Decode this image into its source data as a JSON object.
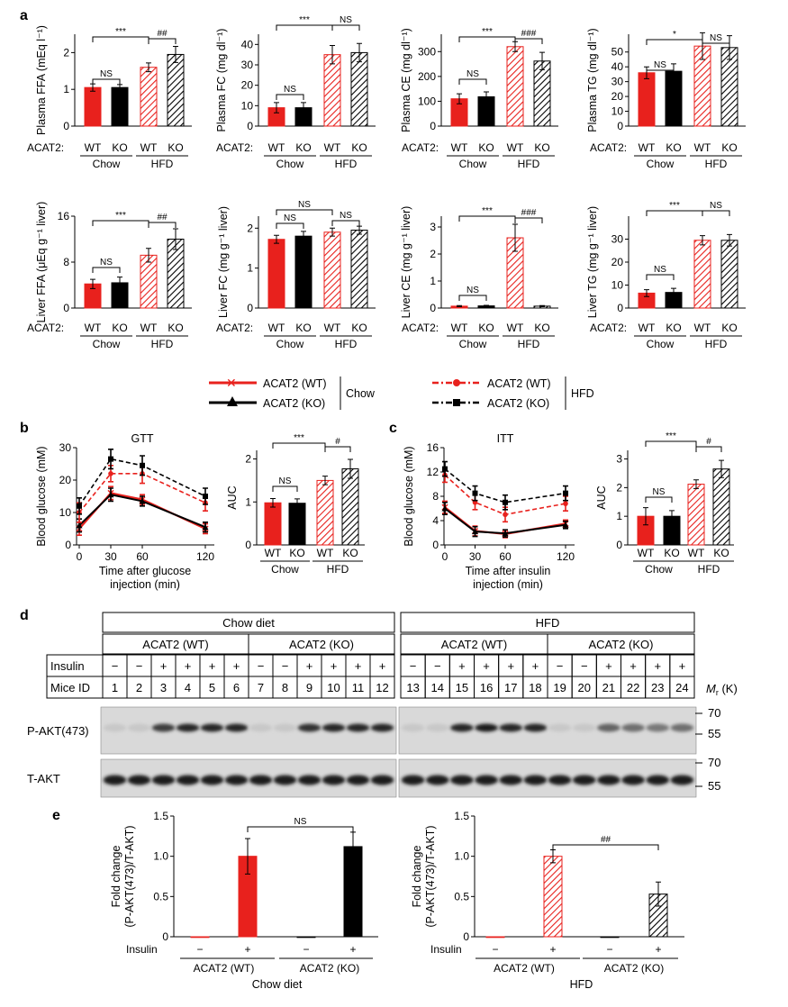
{
  "panel_labels": {
    "a": "a",
    "b": "b",
    "c": "c",
    "d": "d",
    "e": "e"
  },
  "colors": {
    "wt": "#e8211d",
    "ko": "#000000",
    "hfd_wt": "#e8211d",
    "hfd_ko": "#000000"
  },
  "group_labels": {
    "acat2": "ACAT2:",
    "wt": "WT",
    "ko": "KO",
    "chow": "Chow",
    "hfd": "HFD"
  },
  "legend": {
    "chow_wt": "ACAT2 (WT)",
    "chow_ko": "ACAT2 (KO)",
    "chow": "Chow",
    "hfd_wt": "ACAT2 (WT)",
    "hfd_ko": "ACAT2 (KO)",
    "hfd": "HFD"
  },
  "chart_data": [
    {
      "id": "plasma-ffa",
      "type": "bar",
      "ylabel": "Plasma FFA (mEq l⁻¹)",
      "ylim": [
        0,
        2.5
      ],
      "yticks": [
        "0",
        "1",
        "2"
      ],
      "categories": [
        "WT",
        "KO",
        "WT",
        "KO"
      ],
      "groups": [
        "Chow",
        "HFD"
      ],
      "values": [
        1.05,
        1.05,
        1.6,
        1.95
      ],
      "errors": [
        0.1,
        0.08,
        0.12,
        0.22
      ],
      "annotations": [
        "***",
        "##",
        "NS"
      ]
    },
    {
      "id": "plasma-fc",
      "type": "bar",
      "ylabel": "Plasma FC (mg dl⁻¹)",
      "ylim": [
        0,
        45
      ],
      "yticks": [
        "0",
        "10",
        "20",
        "30",
        "40"
      ],
      "categories": [
        "WT",
        "KO",
        "WT",
        "KO"
      ],
      "groups": [
        "Chow",
        "HFD"
      ],
      "values": [
        9,
        9,
        35,
        36
      ],
      "errors": [
        2.5,
        2.5,
        4.5,
        4.5
      ],
      "annotations": [
        "***",
        "NS",
        "NS"
      ]
    },
    {
      "id": "plasma-ce",
      "type": "bar",
      "ylabel": "Plasma CE (mg dl⁻¹)",
      "ylim": [
        0,
        370
      ],
      "yticks": [
        "0",
        "100",
        "200",
        "300"
      ],
      "categories": [
        "WT",
        "KO",
        "WT",
        "KO"
      ],
      "groups": [
        "Chow",
        "HFD"
      ],
      "values": [
        110,
        118,
        320,
        262
      ],
      "errors": [
        20,
        20,
        20,
        35
      ],
      "annotations": [
        "***",
        "###",
        "NS"
      ]
    },
    {
      "id": "plasma-tg",
      "type": "bar",
      "ylabel": "Plasma TG (mg dl⁻¹)",
      "ylim": [
        0,
        62
      ],
      "yticks": [
        "0",
        "10",
        "20",
        "30",
        "40",
        "50"
      ],
      "categories": [
        "WT",
        "KO",
        "WT",
        "KO"
      ],
      "groups": [
        "Chow",
        "HFD"
      ],
      "values": [
        36,
        37,
        54,
        53
      ],
      "errors": [
        4,
        5,
        9,
        8
      ],
      "annotations": [
        "*",
        "NS",
        "NS"
      ]
    },
    {
      "id": "liver-ffa",
      "type": "bar",
      "ylabel": "Liver FFA (μEq g⁻¹ liver)",
      "ylim": [
        0,
        16
      ],
      "yticks": [
        "0",
        "8",
        "16"
      ],
      "categories": [
        "WT",
        "KO",
        "WT",
        "KO"
      ],
      "groups": [
        "Chow",
        "HFD"
      ],
      "values": [
        4.2,
        4.4,
        9.2,
        12
      ],
      "errors": [
        0.8,
        1.0,
        1.2,
        1.8
      ],
      "annotations": [
        "***",
        "##",
        "NS"
      ]
    },
    {
      "id": "liver-fc",
      "type": "bar",
      "ylabel": "Liver FC (mg g⁻¹ liver)",
      "ylim": [
        0,
        2.3
      ],
      "yticks": [
        "0",
        "1",
        "2"
      ],
      "categories": [
        "WT",
        "KO",
        "WT",
        "KO"
      ],
      "groups": [
        "Chow",
        "HFD"
      ],
      "values": [
        1.72,
        1.8,
        1.9,
        1.95
      ],
      "errors": [
        0.1,
        0.12,
        0.1,
        0.1
      ],
      "annotations": [
        "NS",
        "NS",
        "NS"
      ]
    },
    {
      "id": "liver-ce",
      "type": "bar",
      "ylabel": "Liver CE (mg g⁻¹ liver)",
      "ylim": [
        0,
        3.4
      ],
      "yticks": [
        "0",
        "1",
        "2",
        "3"
      ],
      "categories": [
        "WT",
        "KO",
        "WT",
        "KO"
      ],
      "groups": [
        "Chow",
        "HFD"
      ],
      "values": [
        0.07,
        0.08,
        2.6,
        0.07
      ],
      "errors": [
        0.02,
        0.02,
        0.5,
        0.02
      ],
      "annotations": [
        "***",
        "###",
        "NS"
      ]
    },
    {
      "id": "liver-tg",
      "type": "bar",
      "ylabel": "Liver TG (mg g⁻¹ liver)",
      "ylim": [
        0,
        40
      ],
      "yticks": [
        "0",
        "10",
        "20",
        "30"
      ],
      "categories": [
        "WT",
        "KO",
        "WT",
        "KO"
      ],
      "groups": [
        "Chow",
        "HFD"
      ],
      "values": [
        6.5,
        6.8,
        29.5,
        29.5
      ],
      "errors": [
        1.5,
        1.8,
        2,
        2.5
      ],
      "annotations": [
        "***",
        "NS",
        "NS"
      ]
    },
    {
      "id": "gtt",
      "type": "line",
      "title": "GTT",
      "xlabel": "Time after glucose injection (min)",
      "ylabel": "Blood glucose (mM)",
      "x": [
        0,
        30,
        60,
        120
      ],
      "ylim": [
        0,
        30
      ],
      "yticks": [
        "0",
        "10",
        "20",
        "30"
      ],
      "xticks": [
        "0",
        "30",
        "60",
        "120"
      ],
      "series": [
        {
          "name": "ACAT2 (WT) Chow",
          "values": [
            5,
            16,
            14,
            5
          ],
          "errors": [
            2,
            2,
            1.5,
            1.5
          ]
        },
        {
          "name": "ACAT2 (KO) Chow",
          "values": [
            6,
            15.5,
            13.5,
            5.5
          ],
          "errors": [
            2,
            2,
            1.5,
            1.5
          ]
        },
        {
          "name": "ACAT2 (WT) HFD",
          "values": [
            10,
            22,
            22,
            13
          ],
          "errors": [
            3,
            2.5,
            3,
            2.5
          ]
        },
        {
          "name": "ACAT2 (KO) HFD",
          "values": [
            12,
            26.5,
            24.5,
            15
          ],
          "errors": [
            2.5,
            3,
            3,
            2.5
          ]
        }
      ]
    },
    {
      "id": "gtt-auc",
      "type": "bar",
      "ylabel": "AUC",
      "ylim": [
        0,
        2.2
      ],
      "yticks": [
        "0",
        "1",
        "2"
      ],
      "categories": [
        "WT",
        "KO",
        "WT",
        "KO"
      ],
      "groups": [
        "Chow",
        "HFD"
      ],
      "values": [
        0.98,
        0.97,
        1.5,
        1.77
      ],
      "errors": [
        0.1,
        0.1,
        0.1,
        0.22
      ],
      "annotations": [
        "***",
        "#",
        "NS"
      ]
    },
    {
      "id": "itt",
      "type": "line",
      "title": "ITT",
      "xlabel": "Time after insulin injection (min)",
      "ylabel": "Blood glucose (mM)",
      "x": [
        0,
        30,
        60,
        120
      ],
      "ylim": [
        0,
        16
      ],
      "yticks": [
        "0",
        "4",
        "8",
        "12",
        "16"
      ],
      "xticks": [
        "0",
        "30",
        "60",
        "120"
      ],
      "series": [
        {
          "name": "ACAT2 (WT) Chow",
          "values": [
            6.2,
            2.3,
            1.8,
            3.5
          ],
          "errors": [
            1,
            0.8,
            0.6,
            0.6
          ]
        },
        {
          "name": "ACAT2 (KO) Chow",
          "values": [
            6,
            2.2,
            1.9,
            3.3
          ],
          "errors": [
            1,
            0.8,
            0.6,
            0.6
          ]
        },
        {
          "name": "ACAT2 (WT) HFD",
          "values": [
            11.5,
            7,
            5,
            6.8
          ],
          "errors": [
            1.2,
            1.2,
            1.2,
            1.2
          ]
        },
        {
          "name": "ACAT2 (KO) HFD",
          "values": [
            12.5,
            8.5,
            7,
            8.5
          ],
          "errors": [
            1.2,
            1.2,
            1.2,
            1.2
          ]
        }
      ]
    },
    {
      "id": "itt-auc",
      "type": "bar",
      "ylabel": "AUC",
      "ylim": [
        0,
        3.3
      ],
      "yticks": [
        "0",
        "1",
        "2",
        "3"
      ],
      "categories": [
        "WT",
        "KO",
        "WT",
        "KO"
      ],
      "groups": [
        "Chow",
        "HFD"
      ],
      "values": [
        1.0,
        1.0,
        2.12,
        2.65
      ],
      "errors": [
        0.3,
        0.2,
        0.15,
        0.3
      ],
      "annotations": [
        "***",
        "#",
        "NS"
      ]
    },
    {
      "id": "e-chow",
      "type": "bar",
      "ylabel": "Fold change (P-AKT(473)/T-AKT)",
      "ylim": [
        0,
        1.5
      ],
      "yticks": [
        "0",
        "0.5",
        "1.0",
        "1.5"
      ],
      "categories": [
        "−",
        "+",
        "−",
        "+"
      ],
      "row_label": "Insulin",
      "groups": [
        "ACAT2 (WT)",
        "ACAT2 (KO)"
      ],
      "caption": "Chow diet",
      "values": [
        0.0,
        1.0,
        0.0,
        1.12
      ],
      "errors": [
        0,
        0.22,
        0,
        0.18
      ],
      "annotations": [
        "NS"
      ]
    },
    {
      "id": "e-hfd",
      "type": "bar",
      "ylabel": "Fold change (P-AKT(473)/T-AKT)",
      "ylim": [
        0,
        1.5
      ],
      "yticks": [
        "0",
        "0.5",
        "1.0",
        "1.5"
      ],
      "categories": [
        "−",
        "+",
        "−",
        "+"
      ],
      "row_label": "Insulin",
      "groups": [
        "ACAT2 (WT)",
        "ACAT2 (KO)"
      ],
      "caption": "HFD",
      "values": [
        0.0,
        1.0,
        0.0,
        0.53
      ],
      "errors": [
        0,
        0.08,
        0,
        0.15
      ],
      "annotations": [
        "##"
      ]
    }
  ],
  "blot": {
    "diets": [
      "Chow diet",
      "HFD"
    ],
    "genotypes": [
      "ACAT2 (WT)",
      "ACAT2 (KO)",
      "ACAT2 (WT)",
      "ACAT2 (KO)"
    ],
    "insulin_label": "Insulin",
    "mice_label": "Mice ID",
    "insulin": [
      "−",
      "−",
      "+",
      "+",
      "+",
      "+",
      "−",
      "−",
      "+",
      "+",
      "+",
      "+",
      "−",
      "−",
      "+",
      "+",
      "+",
      "+",
      "−",
      "−",
      "+",
      "+",
      "+",
      "+"
    ],
    "mice": [
      "1",
      "2",
      "3",
      "4",
      "5",
      "6",
      "7",
      "8",
      "9",
      "10",
      "11",
      "12",
      "13",
      "14",
      "15",
      "16",
      "17",
      "18",
      "19",
      "20",
      "21",
      "22",
      "23",
      "24"
    ],
    "mr_label": "Mr (K)",
    "markers": [
      "70",
      "55",
      "70",
      "55"
    ],
    "rows": [
      "P-AKT(473)",
      "T-AKT"
    ],
    "pakt_intensity": [
      0.05,
      0.05,
      0.75,
      0.85,
      0.85,
      0.85,
      0.05,
      0.05,
      0.8,
      0.85,
      0.85,
      0.85,
      0.05,
      0.05,
      0.85,
      0.9,
      0.85,
      0.85,
      0.05,
      0.05,
      0.55,
      0.5,
      0.45,
      0.5
    ],
    "takt_intensity": [
      0.9,
      0.9,
      0.9,
      0.9,
      0.9,
      0.9,
      0.9,
      0.9,
      0.9,
      0.9,
      0.9,
      0.9,
      0.9,
      0.9,
      0.9,
      0.9,
      0.9,
      0.9,
      0.9,
      0.9,
      0.9,
      0.9,
      0.9,
      0.9
    ]
  }
}
